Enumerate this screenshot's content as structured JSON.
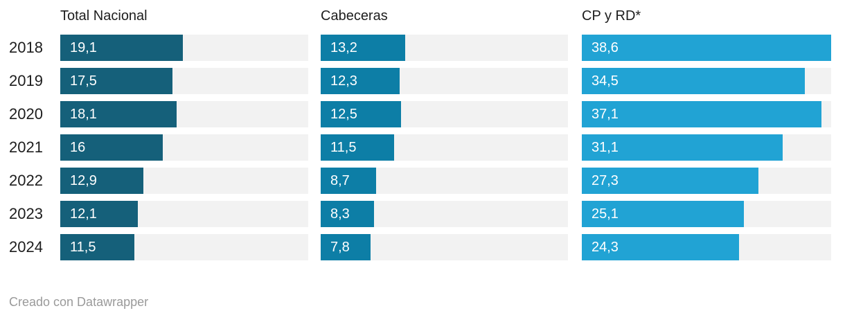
{
  "chart_data": {
    "type": "bar",
    "orientation": "horizontal",
    "categories": [
      "2018",
      "2019",
      "2020",
      "2021",
      "2022",
      "2023",
      "2024"
    ],
    "series": [
      {
        "name": "Total Nacional",
        "color": "#15607a",
        "values": [
          19.1,
          17.5,
          18.1,
          16,
          12.9,
          12.1,
          11.5
        ],
        "display": [
          "19,1",
          "17,5",
          "18,1",
          "16",
          "12,9",
          "12,1",
          "11,5"
        ]
      },
      {
        "name": "Cabeceras",
        "color": "#0d7ea6",
        "values": [
          13.2,
          12.3,
          12.5,
          11.5,
          8.7,
          8.3,
          7.8
        ],
        "display": [
          "13,2",
          "12,3",
          "12,5",
          "11,5",
          "8,7",
          "8,3",
          "7,8"
        ]
      },
      {
        "name": "CP y RD*",
        "color": "#21a3d4",
        "values": [
          38.6,
          34.5,
          37.1,
          31.1,
          27.3,
          25.1,
          24.3
        ],
        "display": [
          "38,6",
          "34,5",
          "37,1",
          "31,1",
          "27,3",
          "25,1",
          "24,3"
        ]
      }
    ],
    "xlim": [
      0,
      38.6
    ],
    "grid": false,
    "legend_position": "column-headers",
    "value_label_position": "inside-start",
    "track_color": "#f2f2f2"
  },
  "footer": {
    "credit": "Creado con Datawrapper"
  },
  "colors": {
    "series": [
      "#15607a",
      "#0d7ea6",
      "#21a3d4"
    ],
    "track": "#f2f2f2",
    "value_text": "#ffffff",
    "label_text": "#1d1d1d",
    "credit_text": "#9a9a9a",
    "background": "#ffffff"
  }
}
